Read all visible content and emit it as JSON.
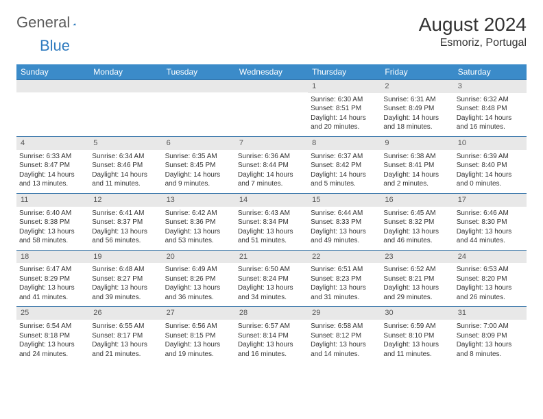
{
  "brand": {
    "part1": "General",
    "part2": "Blue"
  },
  "title": {
    "month": "August 2024",
    "location": "Esmoriz, Portugal"
  },
  "colors": {
    "header_bg": "#3b8bc9",
    "header_text": "#ffffff",
    "week_border": "#2f6fa6",
    "daynum_bg": "#e8e8e8",
    "body_text": "#333333"
  },
  "day_headers": [
    "Sunday",
    "Monday",
    "Tuesday",
    "Wednesday",
    "Thursday",
    "Friday",
    "Saturday"
  ],
  "weeks": [
    [
      {
        "empty": true
      },
      {
        "empty": true
      },
      {
        "empty": true
      },
      {
        "empty": true
      },
      {
        "day": "1",
        "sunrise": "Sunrise: 6:30 AM",
        "sunset": "Sunset: 8:51 PM",
        "daylight": "Daylight: 14 hours and 20 minutes."
      },
      {
        "day": "2",
        "sunrise": "Sunrise: 6:31 AM",
        "sunset": "Sunset: 8:49 PM",
        "daylight": "Daylight: 14 hours and 18 minutes."
      },
      {
        "day": "3",
        "sunrise": "Sunrise: 6:32 AM",
        "sunset": "Sunset: 8:48 PM",
        "daylight": "Daylight: 14 hours and 16 minutes."
      }
    ],
    [
      {
        "day": "4",
        "sunrise": "Sunrise: 6:33 AM",
        "sunset": "Sunset: 8:47 PM",
        "daylight": "Daylight: 14 hours and 13 minutes."
      },
      {
        "day": "5",
        "sunrise": "Sunrise: 6:34 AM",
        "sunset": "Sunset: 8:46 PM",
        "daylight": "Daylight: 14 hours and 11 minutes."
      },
      {
        "day": "6",
        "sunrise": "Sunrise: 6:35 AM",
        "sunset": "Sunset: 8:45 PM",
        "daylight": "Daylight: 14 hours and 9 minutes."
      },
      {
        "day": "7",
        "sunrise": "Sunrise: 6:36 AM",
        "sunset": "Sunset: 8:44 PM",
        "daylight": "Daylight: 14 hours and 7 minutes."
      },
      {
        "day": "8",
        "sunrise": "Sunrise: 6:37 AM",
        "sunset": "Sunset: 8:42 PM",
        "daylight": "Daylight: 14 hours and 5 minutes."
      },
      {
        "day": "9",
        "sunrise": "Sunrise: 6:38 AM",
        "sunset": "Sunset: 8:41 PM",
        "daylight": "Daylight: 14 hours and 2 minutes."
      },
      {
        "day": "10",
        "sunrise": "Sunrise: 6:39 AM",
        "sunset": "Sunset: 8:40 PM",
        "daylight": "Daylight: 14 hours and 0 minutes."
      }
    ],
    [
      {
        "day": "11",
        "sunrise": "Sunrise: 6:40 AM",
        "sunset": "Sunset: 8:38 PM",
        "daylight": "Daylight: 13 hours and 58 minutes."
      },
      {
        "day": "12",
        "sunrise": "Sunrise: 6:41 AM",
        "sunset": "Sunset: 8:37 PM",
        "daylight": "Daylight: 13 hours and 56 minutes."
      },
      {
        "day": "13",
        "sunrise": "Sunrise: 6:42 AM",
        "sunset": "Sunset: 8:36 PM",
        "daylight": "Daylight: 13 hours and 53 minutes."
      },
      {
        "day": "14",
        "sunrise": "Sunrise: 6:43 AM",
        "sunset": "Sunset: 8:34 PM",
        "daylight": "Daylight: 13 hours and 51 minutes."
      },
      {
        "day": "15",
        "sunrise": "Sunrise: 6:44 AM",
        "sunset": "Sunset: 8:33 PM",
        "daylight": "Daylight: 13 hours and 49 minutes."
      },
      {
        "day": "16",
        "sunrise": "Sunrise: 6:45 AM",
        "sunset": "Sunset: 8:32 PM",
        "daylight": "Daylight: 13 hours and 46 minutes."
      },
      {
        "day": "17",
        "sunrise": "Sunrise: 6:46 AM",
        "sunset": "Sunset: 8:30 PM",
        "daylight": "Daylight: 13 hours and 44 minutes."
      }
    ],
    [
      {
        "day": "18",
        "sunrise": "Sunrise: 6:47 AM",
        "sunset": "Sunset: 8:29 PM",
        "daylight": "Daylight: 13 hours and 41 minutes."
      },
      {
        "day": "19",
        "sunrise": "Sunrise: 6:48 AM",
        "sunset": "Sunset: 8:27 PM",
        "daylight": "Daylight: 13 hours and 39 minutes."
      },
      {
        "day": "20",
        "sunrise": "Sunrise: 6:49 AM",
        "sunset": "Sunset: 8:26 PM",
        "daylight": "Daylight: 13 hours and 36 minutes."
      },
      {
        "day": "21",
        "sunrise": "Sunrise: 6:50 AM",
        "sunset": "Sunset: 8:24 PM",
        "daylight": "Daylight: 13 hours and 34 minutes."
      },
      {
        "day": "22",
        "sunrise": "Sunrise: 6:51 AM",
        "sunset": "Sunset: 8:23 PM",
        "daylight": "Daylight: 13 hours and 31 minutes."
      },
      {
        "day": "23",
        "sunrise": "Sunrise: 6:52 AM",
        "sunset": "Sunset: 8:21 PM",
        "daylight": "Daylight: 13 hours and 29 minutes."
      },
      {
        "day": "24",
        "sunrise": "Sunrise: 6:53 AM",
        "sunset": "Sunset: 8:20 PM",
        "daylight": "Daylight: 13 hours and 26 minutes."
      }
    ],
    [
      {
        "day": "25",
        "sunrise": "Sunrise: 6:54 AM",
        "sunset": "Sunset: 8:18 PM",
        "daylight": "Daylight: 13 hours and 24 minutes."
      },
      {
        "day": "26",
        "sunrise": "Sunrise: 6:55 AM",
        "sunset": "Sunset: 8:17 PM",
        "daylight": "Daylight: 13 hours and 21 minutes."
      },
      {
        "day": "27",
        "sunrise": "Sunrise: 6:56 AM",
        "sunset": "Sunset: 8:15 PM",
        "daylight": "Daylight: 13 hours and 19 minutes."
      },
      {
        "day": "28",
        "sunrise": "Sunrise: 6:57 AM",
        "sunset": "Sunset: 8:14 PM",
        "daylight": "Daylight: 13 hours and 16 minutes."
      },
      {
        "day": "29",
        "sunrise": "Sunrise: 6:58 AM",
        "sunset": "Sunset: 8:12 PM",
        "daylight": "Daylight: 13 hours and 14 minutes."
      },
      {
        "day": "30",
        "sunrise": "Sunrise: 6:59 AM",
        "sunset": "Sunset: 8:10 PM",
        "daylight": "Daylight: 13 hours and 11 minutes."
      },
      {
        "day": "31",
        "sunrise": "Sunrise: 7:00 AM",
        "sunset": "Sunset: 8:09 PM",
        "daylight": "Daylight: 13 hours and 8 minutes."
      }
    ]
  ]
}
